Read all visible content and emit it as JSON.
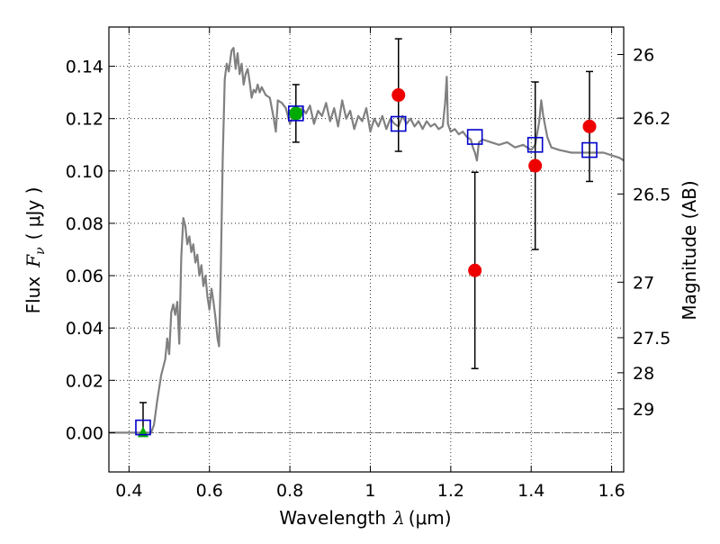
{
  "chart_data": {
    "type": "scatter",
    "title": "",
    "xlabel": {
      "text": "Wavelength",
      "symbol": "λ",
      "unit": "(μm)"
    },
    "ylabel": {
      "text": "Flux",
      "symbol": "F",
      "subscript": "ν",
      "unit": "( μJy )"
    },
    "y2label": "Magnitude (AB)",
    "xlim": [
      0.35,
      1.63
    ],
    "ylim": [
      -0.015,
      0.155
    ],
    "grid": true,
    "x_ticks": [
      {
        "value": 0.4,
        "label": "0.4"
      },
      {
        "value": 0.6,
        "label": "0.6"
      },
      {
        "value": 0.8,
        "label": "0.8"
      },
      {
        "value": 1.0,
        "label": "1"
      },
      {
        "value": 1.2,
        "label": "1.2"
      },
      {
        "value": 1.4,
        "label": "1.4"
      },
      {
        "value": 1.6,
        "label": "1.6"
      }
    ],
    "y_ticks": [
      {
        "value": 0.0,
        "label": "0.00"
      },
      {
        "value": 0.02,
        "label": "0.02"
      },
      {
        "value": 0.04,
        "label": "0.04"
      },
      {
        "value": 0.06,
        "label": "0.06"
      },
      {
        "value": 0.08,
        "label": "0.08"
      },
      {
        "value": 0.1,
        "label": "0.10"
      },
      {
        "value": 0.12,
        "label": "0.12"
      },
      {
        "value": 0.14,
        "label": "0.14"
      }
    ],
    "y2_ticks": [
      {
        "label": "26",
        "flux": 0.1445
      },
      {
        "label": "26.2",
        "flux": 0.1202
      },
      {
        "label": "26.5",
        "flux": 0.0912
      },
      {
        "label": "27",
        "flux": 0.0575
      },
      {
        "label": "27.5",
        "flux": 0.0363
      },
      {
        "label": "28",
        "flux": 0.0229
      },
      {
        "label": "29",
        "flux": 0.0091
      }
    ],
    "zero_line": 0.0,
    "model_spectrum": {
      "color": "#808080",
      "points": [
        [
          0.35,
          0.0
        ],
        [
          0.44,
          0.0
        ],
        [
          0.455,
          0.0
        ],
        [
          0.462,
          0.003
        ],
        [
          0.47,
          0.012
        ],
        [
          0.48,
          0.022
        ],
        [
          0.49,
          0.028
        ],
        [
          0.495,
          0.036
        ],
        [
          0.5,
          0.03
        ],
        [
          0.505,
          0.046
        ],
        [
          0.51,
          0.049
        ],
        [
          0.515,
          0.045
        ],
        [
          0.52,
          0.05
        ],
        [
          0.525,
          0.034
        ],
        [
          0.53,
          0.067
        ],
        [
          0.535,
          0.082
        ],
        [
          0.54,
          0.079
        ],
        [
          0.545,
          0.072
        ],
        [
          0.55,
          0.075
        ],
        [
          0.555,
          0.069
        ],
        [
          0.56,
          0.072
        ],
        [
          0.565,
          0.065
        ],
        [
          0.57,
          0.068
        ],
        [
          0.575,
          0.06
        ],
        [
          0.58,
          0.064
        ],
        [
          0.585,
          0.056
        ],
        [
          0.59,
          0.06
        ],
        [
          0.595,
          0.052
        ],
        [
          0.6,
          0.047
        ],
        [
          0.605,
          0.055
        ],
        [
          0.61,
          0.05
        ],
        [
          0.615,
          0.044
        ],
        [
          0.62,
          0.036
        ],
        [
          0.624,
          0.033
        ],
        [
          0.628,
          0.06
        ],
        [
          0.633,
          0.105
        ],
        [
          0.638,
          0.135
        ],
        [
          0.643,
          0.141
        ],
        [
          0.648,
          0.138
        ],
        [
          0.655,
          0.146
        ],
        [
          0.66,
          0.147
        ],
        [
          0.665,
          0.139
        ],
        [
          0.67,
          0.145
        ],
        [
          0.675,
          0.137
        ],
        [
          0.68,
          0.141
        ],
        [
          0.685,
          0.133
        ],
        [
          0.69,
          0.137
        ],
        [
          0.695,
          0.139
        ],
        [
          0.7,
          0.134
        ],
        [
          0.705,
          0.128
        ],
        [
          0.71,
          0.131
        ],
        [
          0.715,
          0.13
        ],
        [
          0.72,
          0.133
        ],
        [
          0.725,
          0.13
        ],
        [
          0.73,
          0.132
        ],
        [
          0.74,
          0.129
        ],
        [
          0.75,
          0.128
        ],
        [
          0.76,
          0.12
        ],
        [
          0.765,
          0.115
        ],
        [
          0.77,
          0.127
        ],
        [
          0.78,
          0.126
        ],
        [
          0.79,
          0.124
        ],
        [
          0.8,
          0.118
        ],
        [
          0.81,
          0.122
        ],
        [
          0.82,
          0.12
        ],
        [
          0.83,
          0.124
        ],
        [
          0.84,
          0.122
        ],
        [
          0.85,
          0.125
        ],
        [
          0.86,
          0.118
        ],
        [
          0.87,
          0.123
        ],
        [
          0.88,
          0.121
        ],
        [
          0.89,
          0.126
        ],
        [
          0.9,
          0.119
        ],
        [
          0.91,
          0.124
        ],
        [
          0.92,
          0.117
        ],
        [
          0.93,
          0.127
        ],
        [
          0.94,
          0.12
        ],
        [
          0.95,
          0.123
        ],
        [
          0.96,
          0.116
        ],
        [
          0.97,
          0.121
        ],
        [
          0.98,
          0.119
        ],
        [
          0.99,
          0.124
        ],
        [
          1.0,
          0.115
        ],
        [
          1.01,
          0.12
        ],
        [
          1.02,
          0.117
        ],
        [
          1.03,
          0.121
        ],
        [
          1.04,
          0.116
        ],
        [
          1.05,
          0.12
        ],
        [
          1.06,
          0.118
        ],
        [
          1.07,
          0.117
        ],
        [
          1.08,
          0.121
        ],
        [
          1.09,
          0.118
        ],
        [
          1.1,
          0.12
        ],
        [
          1.11,
          0.117
        ],
        [
          1.12,
          0.119
        ],
        [
          1.13,
          0.116
        ],
        [
          1.14,
          0.119
        ],
        [
          1.15,
          0.117
        ],
        [
          1.16,
          0.118
        ],
        [
          1.17,
          0.116
        ],
        [
          1.18,
          0.117
        ],
        [
          1.186,
          0.126
        ],
        [
          1.19,
          0.136
        ],
        [
          1.193,
          0.118
        ],
        [
          1.2,
          0.115
        ],
        [
          1.21,
          0.116
        ],
        [
          1.22,
          0.114
        ],
        [
          1.23,
          0.115
        ],
        [
          1.24,
          0.113
        ],
        [
          1.25,
          0.112
        ],
        [
          1.255,
          0.109
        ],
        [
          1.26,
          0.107
        ],
        [
          1.265,
          0.104
        ],
        [
          1.27,
          0.111
        ],
        [
          1.28,
          0.112
        ],
        [
          1.3,
          0.111
        ],
        [
          1.32,
          0.11
        ],
        [
          1.34,
          0.111
        ],
        [
          1.36,
          0.109
        ],
        [
          1.38,
          0.11
        ],
        [
          1.4,
          0.108
        ],
        [
          1.41,
          0.11
        ],
        [
          1.42,
          0.119
        ],
        [
          1.425,
          0.127
        ],
        [
          1.43,
          0.121
        ],
        [
          1.44,
          0.113
        ],
        [
          1.45,
          0.109
        ],
        [
          1.47,
          0.108
        ],
        [
          1.5,
          0.107
        ],
        [
          1.53,
          0.107
        ],
        [
          1.56,
          0.107
        ],
        [
          1.58,
          0.107
        ],
        [
          1.6,
          0.106
        ],
        [
          1.62,
          0.105
        ],
        [
          1.63,
          0.104
        ]
      ]
    },
    "synthetic_photometry": {
      "marker": "open-square",
      "color": "#0000cc",
      "points": [
        {
          "x": 0.435,
          "y": 0.002
        },
        {
          "x": 0.815,
          "y": 0.122
        },
        {
          "x": 1.07,
          "y": 0.118
        },
        {
          "x": 1.26,
          "y": 0.113
        },
        {
          "x": 1.41,
          "y": 0.11
        },
        {
          "x": 1.545,
          "y": 0.108
        }
      ]
    },
    "observed_photometry": {
      "marker": "filled-circle",
      "color": "#ee0000",
      "points": [
        {
          "x": 1.07,
          "y": 0.129,
          "err_low": 0.0215,
          "err_high": 0.0215
        },
        {
          "x": 1.26,
          "y": 0.062,
          "err_low": 0.0375,
          "err_high": 0.0375
        },
        {
          "x": 1.41,
          "y": 0.102,
          "err_low": 0.032,
          "err_high": 0.032
        },
        {
          "x": 1.545,
          "y": 0.117,
          "err_low": 0.021,
          "err_high": 0.021
        }
      ]
    },
    "detection": {
      "marker": "filled-circle",
      "color": "#00aa00",
      "points": [
        {
          "x": 0.815,
          "y": 0.122,
          "err_low": 0.011,
          "err_high": 0.011
        }
      ]
    },
    "upper_limit": {
      "marker": "filled-triangle",
      "color": "#00aa00",
      "points": [
        {
          "x": 0.435,
          "y": 0.0,
          "err_low": 0.0,
          "err_high": 0.0115
        }
      ]
    }
  }
}
